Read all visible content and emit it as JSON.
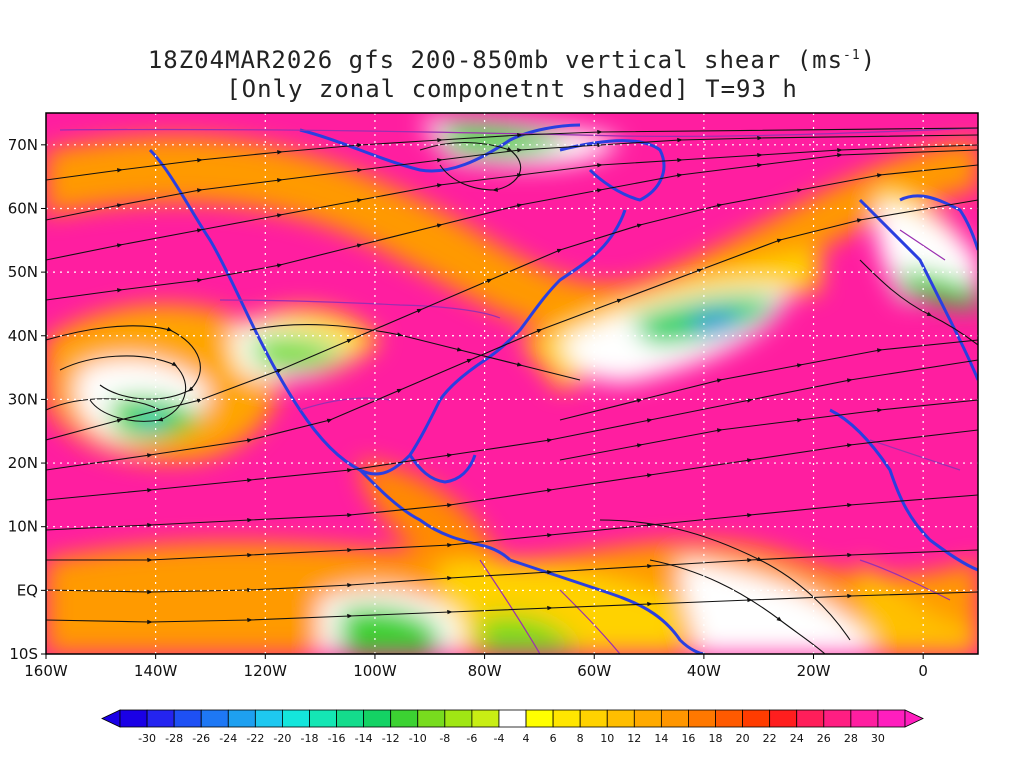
{
  "title": {
    "line1_prefix": "18Z04MAR2026 gfs 200-850mb vertical shear (ms",
    "line1_superscript": "-1",
    "line1_suffix": ")",
    "line2": "[Only zonal componetnt shaded] T=93 h"
  },
  "map": {
    "lon_range": [
      -160,
      10
    ],
    "lat_range": [
      -10,
      75
    ],
    "lat_ticks": [
      {
        "value": 70,
        "label": "70N"
      },
      {
        "value": 60,
        "label": "60N"
      },
      {
        "value": 50,
        "label": "50N"
      },
      {
        "value": 40,
        "label": "40N"
      },
      {
        "value": 30,
        "label": "30N"
      },
      {
        "value": 20,
        "label": "20N"
      },
      {
        "value": 10,
        "label": "10N"
      },
      {
        "value": 0,
        "label": "EQ"
      },
      {
        "value": -10,
        "label": "10S"
      }
    ],
    "lon_ticks": [
      {
        "value": -160,
        "label": "160W"
      },
      {
        "value": -140,
        "label": "140W"
      },
      {
        "value": -120,
        "label": "120W"
      },
      {
        "value": -100,
        "label": "100W"
      },
      {
        "value": -80,
        "label": "80W"
      },
      {
        "value": -60,
        "label": "60W"
      },
      {
        "value": -40,
        "label": "40W"
      },
      {
        "value": -20,
        "label": "20W"
      },
      {
        "value": 0,
        "label": "0"
      }
    ],
    "colors": {
      "coastline": "#2a3fe0",
      "borders": "#9a2fb0",
      "streamlines": "#111111",
      "grid": "#ffffff"
    }
  },
  "colorbar": {
    "labels": [
      "-30",
      "-28",
      "-26",
      "-24",
      "-22",
      "-20",
      "-18",
      "-16",
      "-14",
      "-12",
      "-10",
      "-8",
      "-6",
      "-4",
      "4",
      "6",
      "8",
      "10",
      "12",
      "14",
      "16",
      "18",
      "20",
      "22",
      "24",
      "26",
      "28",
      "30"
    ],
    "colors": [
      "#1a00e6",
      "#2424f0",
      "#1e50f5",
      "#1e78f5",
      "#1ea0f0",
      "#1ec8f0",
      "#14e6dc",
      "#14e6b4",
      "#14dc8c",
      "#14d264",
      "#3cd232",
      "#78dc1e",
      "#a0e614",
      "#c8ee14",
      "#ffffff",
      "#ffff00",
      "#ffe600",
      "#ffd200",
      "#ffbe00",
      "#ffaa00",
      "#ff9600",
      "#ff7800",
      "#ff5a00",
      "#ff3c00",
      "#ff1e1e",
      "#ff1e5a",
      "#ff1e82",
      "#ff1ea0",
      "#ff1ebe"
    ]
  }
}
